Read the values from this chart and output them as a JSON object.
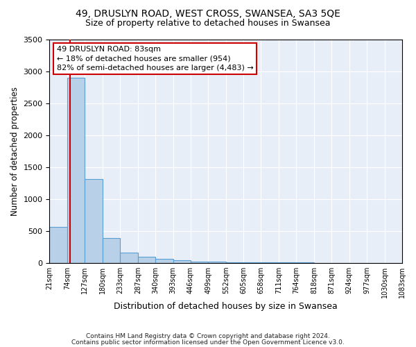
{
  "title1": "49, DRUSLYN ROAD, WEST CROSS, SWANSEA, SA3 5QE",
  "title2": "Size of property relative to detached houses in Swansea",
  "xlabel": "Distribution of detached houses by size in Swansea",
  "ylabel": "Number of detached properties",
  "bin_edges": [
    21,
    74,
    127,
    180,
    233,
    287,
    340,
    393,
    446,
    499,
    552,
    605,
    658,
    711,
    764,
    818,
    871,
    924,
    977,
    1030,
    1083
  ],
  "bar_heights": [
    560,
    2900,
    1310,
    390,
    160,
    95,
    60,
    40,
    20,
    15,
    10,
    8,
    6,
    5,
    4,
    3,
    2,
    2,
    1,
    1
  ],
  "bar_color": "#b8d0e8",
  "bar_edge_color": "#5a9fd4",
  "property_size": 83,
  "red_line_color": "#cc0000",
  "annotation_text": "49 DRUSLYN ROAD: 83sqm\n← 18% of detached houses are smaller (954)\n82% of semi-detached houses are larger (4,483) →",
  "annotation_box_color": "#ffffff",
  "annotation_box_edge": "#cc0000",
  "footer1": "Contains HM Land Registry data © Crown copyright and database right 2024.",
  "footer2": "Contains public sector information licensed under the Open Government Licence v3.0.",
  "ylim": [
    0,
    3500
  ],
  "plot_bg": "#e8eef8"
}
